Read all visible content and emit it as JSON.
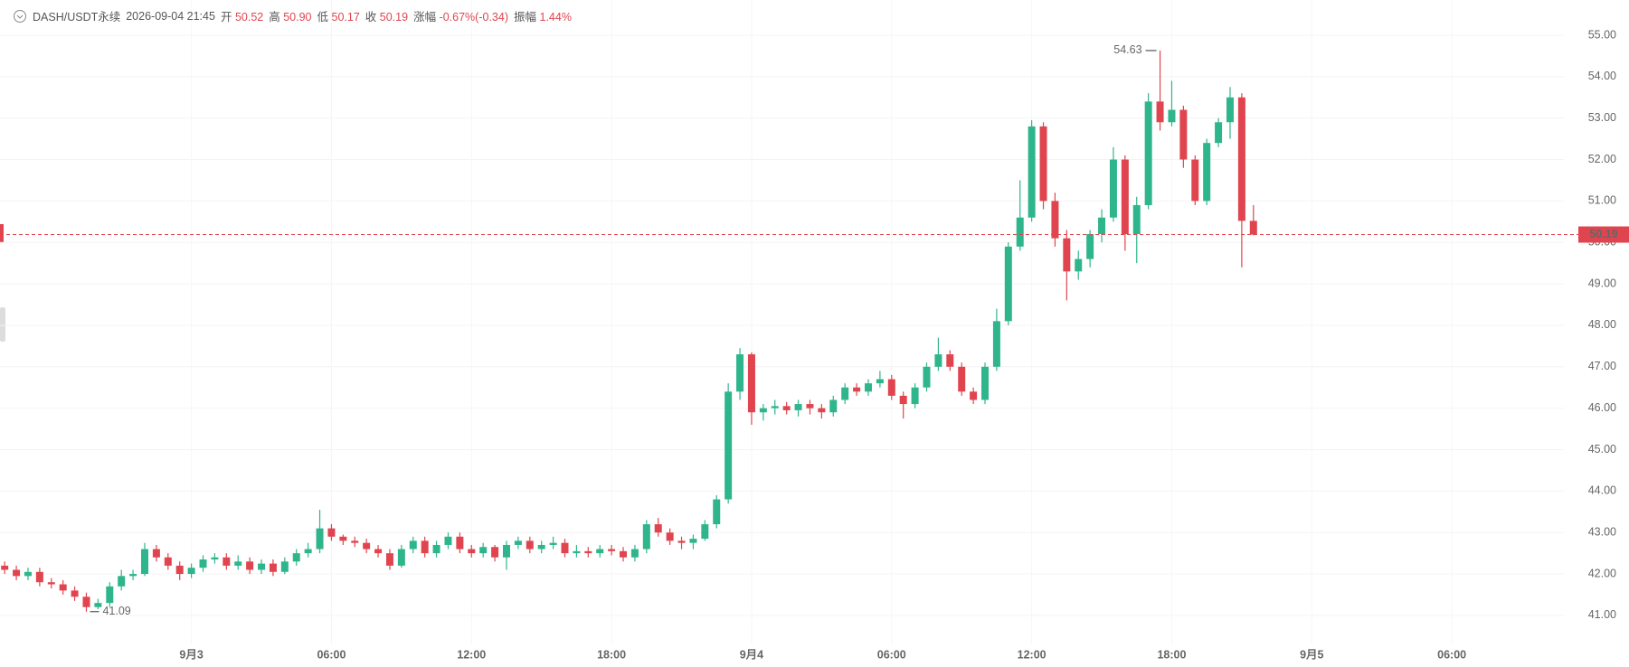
{
  "header": {
    "symbol": "DASH/USDT永续",
    "time": "2026-09-04 21:45",
    "fields": [
      {
        "label": "开",
        "value": "50.52"
      },
      {
        "label": "高",
        "value": "50.90"
      },
      {
        "label": "低",
        "value": "50.17"
      },
      {
        "label": "收",
        "value": "50.19"
      },
      {
        "label": "涨幅",
        "value": "-0.67%(-0.34)"
      },
      {
        "label": "振幅",
        "value": "1.44%"
      }
    ]
  },
  "chart_data": {
    "type": "candlestick",
    "up_color": "#2fb58c",
    "down_color": "#e0454f",
    "grid": true,
    "xlim": [
      -8.2,
      58.8
    ],
    "xticks": [
      {
        "value": 0,
        "label": "9月3"
      },
      {
        "value": 6,
        "label": "06:00"
      },
      {
        "value": 12,
        "label": "12:00"
      },
      {
        "value": 18,
        "label": "18:00"
      },
      {
        "value": 24,
        "label": "9月4"
      },
      {
        "value": 30,
        "label": "06:00"
      },
      {
        "value": 36,
        "label": "12:00"
      },
      {
        "value": 42,
        "label": "18:00"
      },
      {
        "value": 48,
        "label": "9月5"
      },
      {
        "value": 54,
        "label": "06:00"
      }
    ],
    "ylim": [
      40.3,
      55.85
    ],
    "yticks": [
      {
        "value": 41,
        "label": "41.00"
      },
      {
        "value": 42,
        "label": "42.00"
      },
      {
        "value": 43,
        "label": "43.00"
      },
      {
        "value": 44,
        "label": "44.00"
      },
      {
        "value": 45,
        "label": "45.00"
      },
      {
        "value": 46,
        "label": "46.00"
      },
      {
        "value": 47,
        "label": "47.00"
      },
      {
        "value": 48,
        "label": "48.00"
      },
      {
        "value": 49,
        "label": "49.00"
      },
      {
        "value": 50,
        "label": "50.00"
      },
      {
        "value": 51,
        "label": "51.00"
      },
      {
        "value": 52,
        "label": "52.00"
      },
      {
        "value": 53,
        "label": "53.00"
      },
      {
        "value": 54,
        "label": "54.00"
      },
      {
        "value": 55,
        "label": "55.00"
      }
    ],
    "x": [
      -8,
      -7.5,
      -7,
      -6.5,
      -6,
      -5.5,
      -5,
      -4.5,
      -4,
      -3.5,
      -3,
      -2.5,
      -2,
      -1.5,
      -1,
      -0.5,
      0,
      0.5,
      1,
      1.5,
      2,
      2.5,
      3,
      3.5,
      4,
      4.5,
      5,
      5.5,
      6,
      6.5,
      7,
      7.5,
      8,
      8.5,
      9,
      9.5,
      10,
      10.5,
      11,
      11.5,
      12,
      12.5,
      13,
      13.5,
      14,
      14.5,
      15,
      15.5,
      16,
      16.5,
      17,
      17.5,
      18,
      18.5,
      19,
      19.5,
      20,
      20.5,
      21,
      21.5,
      22,
      22.5,
      23,
      23.5,
      24,
      24.5,
      25,
      25.5,
      26,
      26.5,
      27,
      27.5,
      28,
      28.5,
      29,
      29.5,
      30,
      30.5,
      31,
      31.5,
      32,
      32.5,
      33,
      33.5,
      34,
      34.5,
      35,
      35.5,
      36,
      36.5,
      37,
      37.5,
      38,
      38.5,
      39,
      39.5,
      40,
      40.5,
      41,
      41.5,
      42,
      42.5,
      43,
      43.5,
      44,
      44.5,
      45,
      45.5
    ],
    "open": [
      42.2,
      42.1,
      41.95,
      42.05,
      41.8,
      41.75,
      41.6,
      41.45,
      41.2,
      41.3,
      41.7,
      41.95,
      42.0,
      42.6,
      42.4,
      42.2,
      42.0,
      42.15,
      42.35,
      42.4,
      42.2,
      42.3,
      42.1,
      42.25,
      42.05,
      42.3,
      42.5,
      42.6,
      43.1,
      42.9,
      42.8,
      42.75,
      42.6,
      42.5,
      42.2,
      42.6,
      42.8,
      42.5,
      42.7,
      42.9,
      42.6,
      42.5,
      42.65,
      42.4,
      42.7,
      42.8,
      42.6,
      42.7,
      42.75,
      42.5,
      42.55,
      42.5,
      42.6,
      42.55,
      42.4,
      42.6,
      43.2,
      43.0,
      42.8,
      42.75,
      42.85,
      43.2,
      43.8,
      46.4,
      47.3,
      45.9,
      46.0,
      46.05,
      45.95,
      46.1,
      46.0,
      45.9,
      46.2,
      46.5,
      46.4,
      46.6,
      46.7,
      46.3,
      46.1,
      46.5,
      47.0,
      47.3,
      47.0,
      46.4,
      46.2,
      47.0,
      48.1,
      49.9,
      50.6,
      52.8,
      51.0,
      50.1,
      49.3,
      49.6,
      50.2,
      50.6,
      52.0,
      50.2,
      50.9,
      53.4,
      52.9,
      53.2,
      52.0,
      51.0,
      52.4,
      52.9,
      53.5,
      50.52
    ],
    "high": [
      42.3,
      42.2,
      42.15,
      42.15,
      41.9,
      41.85,
      41.7,
      41.55,
      41.4,
      41.8,
      42.1,
      42.1,
      42.75,
      42.7,
      42.5,
      42.3,
      42.25,
      42.45,
      42.5,
      42.5,
      42.45,
      42.4,
      42.35,
      42.35,
      42.4,
      42.6,
      42.75,
      43.55,
      43.2,
      42.95,
      42.9,
      42.85,
      42.7,
      42.6,
      42.7,
      42.9,
      42.9,
      42.8,
      43.0,
      43.0,
      42.7,
      42.75,
      42.7,
      42.8,
      42.9,
      42.9,
      42.8,
      42.9,
      42.85,
      42.7,
      42.65,
      42.7,
      42.7,
      42.65,
      42.7,
      43.3,
      43.35,
      43.1,
      42.9,
      42.95,
      43.3,
      43.9,
      46.6,
      47.45,
      47.35,
      46.1,
      46.2,
      46.15,
      46.2,
      46.2,
      46.1,
      46.3,
      46.6,
      46.6,
      46.7,
      46.9,
      46.8,
      46.4,
      46.6,
      47.1,
      47.7,
      47.4,
      47.1,
      46.5,
      47.1,
      48.4,
      50.0,
      51.5,
      52.95,
      52.9,
      51.2,
      50.3,
      49.8,
      50.3,
      50.8,
      52.3,
      52.1,
      51.1,
      53.6,
      54.63,
      53.9,
      53.3,
      52.1,
      52.5,
      53.0,
      53.75,
      53.6,
      50.9
    ],
    "low": [
      42.0,
      41.85,
      41.85,
      41.7,
      41.65,
      41.5,
      41.35,
      41.09,
      41.15,
      41.2,
      41.6,
      41.85,
      41.95,
      42.3,
      42.1,
      41.85,
      41.9,
      42.05,
      42.25,
      42.1,
      42.1,
      42.0,
      42.0,
      41.95,
      42.0,
      42.2,
      42.4,
      42.5,
      42.8,
      42.7,
      42.65,
      42.5,
      42.4,
      42.1,
      42.15,
      42.5,
      42.4,
      42.4,
      42.6,
      42.5,
      42.4,
      42.4,
      42.3,
      42.1,
      42.6,
      42.5,
      42.5,
      42.6,
      42.4,
      42.4,
      42.4,
      42.4,
      42.45,
      42.3,
      42.3,
      42.5,
      42.9,
      42.7,
      42.6,
      42.6,
      42.8,
      43.1,
      43.7,
      46.2,
      45.6,
      45.7,
      45.85,
      45.85,
      45.8,
      45.85,
      45.75,
      45.8,
      46.1,
      46.3,
      46.3,
      46.5,
      46.2,
      45.75,
      46.0,
      46.4,
      46.9,
      46.9,
      46.3,
      46.1,
      46.1,
      46.9,
      48.0,
      49.8,
      50.5,
      50.8,
      49.9,
      48.6,
      49.1,
      49.4,
      50.0,
      50.5,
      49.8,
      49.5,
      50.8,
      52.7,
      52.8,
      51.8,
      50.9,
      50.9,
      52.3,
      52.5,
      49.4,
      50.17
    ],
    "close": [
      42.1,
      41.95,
      42.05,
      41.8,
      41.75,
      41.6,
      41.45,
      41.2,
      41.3,
      41.7,
      41.95,
      42.0,
      42.6,
      42.4,
      42.2,
      42.0,
      42.15,
      42.35,
      42.4,
      42.2,
      42.3,
      42.1,
      42.25,
      42.05,
      42.3,
      42.5,
      42.6,
      43.1,
      42.9,
      42.8,
      42.75,
      42.6,
      42.5,
      42.2,
      42.6,
      42.8,
      42.5,
      42.7,
      42.9,
      42.6,
      42.5,
      42.65,
      42.4,
      42.7,
      42.8,
      42.6,
      42.7,
      42.75,
      42.5,
      42.55,
      42.5,
      42.6,
      42.55,
      42.4,
      42.6,
      43.2,
      43.0,
      42.8,
      42.75,
      42.85,
      43.2,
      43.8,
      46.4,
      47.3,
      45.9,
      46.0,
      46.05,
      45.95,
      46.1,
      46.0,
      45.9,
      46.2,
      46.5,
      46.4,
      46.6,
      46.7,
      46.3,
      46.1,
      46.5,
      47.0,
      47.3,
      47.0,
      46.4,
      46.2,
      47.0,
      48.1,
      49.9,
      50.6,
      52.8,
      51.0,
      50.1,
      49.3,
      49.6,
      50.2,
      50.6,
      52.0,
      50.2,
      50.9,
      53.4,
      52.9,
      53.2,
      52.0,
      51.0,
      52.4,
      52.9,
      53.5,
      50.52,
      50.19
    ]
  }
}
